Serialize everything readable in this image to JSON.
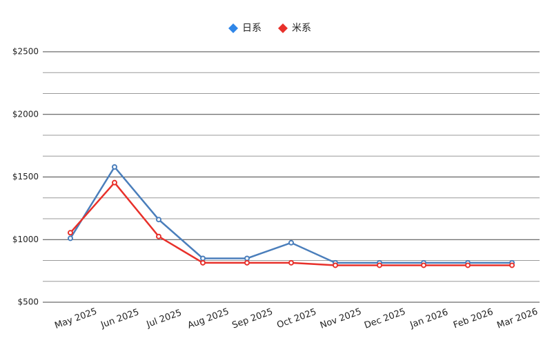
{
  "chart_data": {
    "type": "line",
    "categories": [
      "May 2025",
      "Jun 2025",
      "Jul 2025",
      "Aug 2025",
      "Sep 2025",
      "Oct 2025",
      "Nov 2025",
      "Dec 2025",
      "Jan 2026",
      "Feb 2026",
      "Mar 2026"
    ],
    "series": [
      {
        "name": "日系",
        "color": "#4a7ebb",
        "marker_color": "#2f86e8",
        "values": [
          1010,
          1580,
          1160,
          850,
          850,
          975,
          815,
          815,
          815,
          815,
          815
        ]
      },
      {
        "name": "米系",
        "color": "#e8302a",
        "marker_color": "#e8302a",
        "values": [
          1055,
          1455,
          1025,
          815,
          815,
          815,
          795,
          795,
          795,
          795,
          795
        ]
      }
    ],
    "ylim": [
      500,
      2500
    ],
    "yticks": [
      {
        "value": 500,
        "label": "$500"
      },
      {
        "value": 1000,
        "label": "$1000"
      },
      {
        "value": 1500,
        "label": "$1500"
      },
      {
        "value": 2000,
        "label": "$2000"
      },
      {
        "value": 2500,
        "label": "$2500"
      }
    ],
    "grid": true,
    "legend": "top"
  }
}
